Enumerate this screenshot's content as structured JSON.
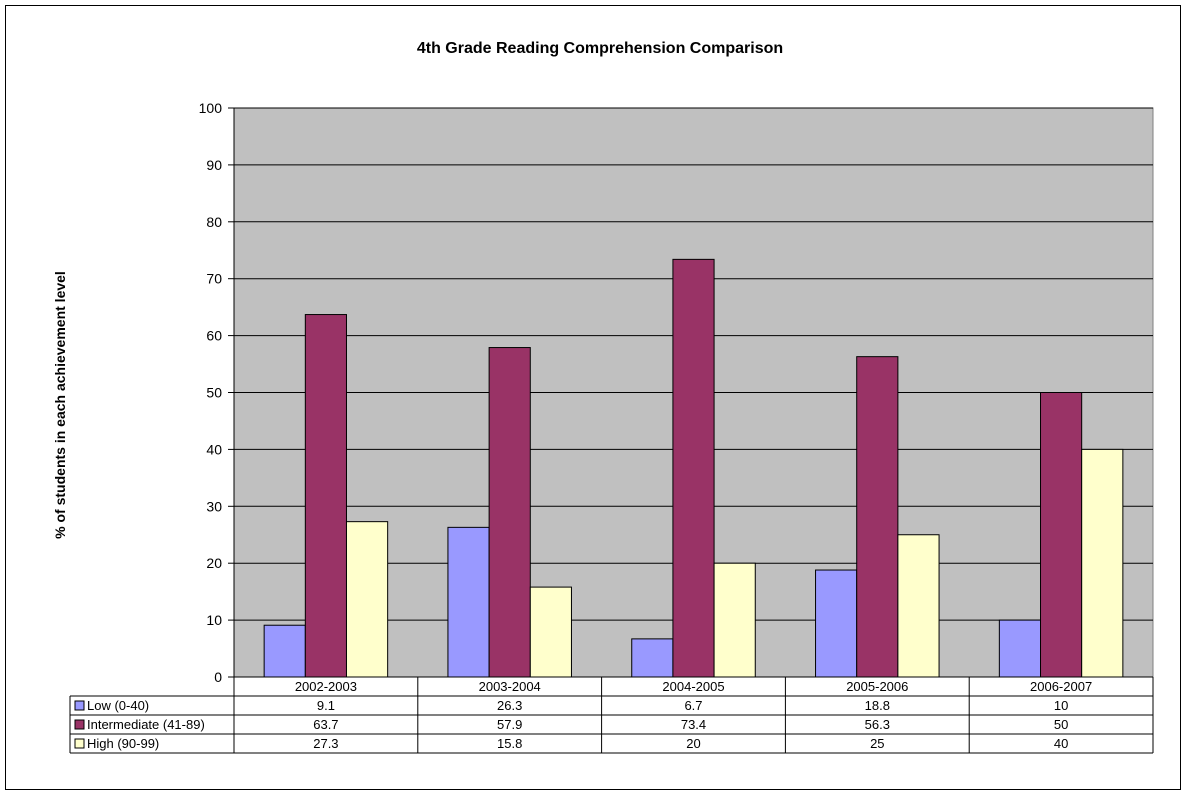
{
  "chart_data": {
    "type": "bar",
    "title": "4th Grade Reading Comprehension Comparison",
    "xlabel": "",
    "ylabel": "% of students in each achievement level",
    "ylim": [
      0,
      100
    ],
    "yticks": [
      0,
      10,
      20,
      30,
      40,
      50,
      60,
      70,
      80,
      90,
      100
    ],
    "grid": true,
    "categories": [
      "2002-2003",
      "2003-2004",
      "2004-2005",
      "2005-2006",
      "2006-2007"
    ],
    "series": [
      {
        "name": "Low (0-40)",
        "color": "#9999FF",
        "values": [
          9.1,
          26.3,
          6.7,
          18.8,
          10
        ],
        "labels": [
          "9.1",
          "26.3",
          "6.7",
          "18.8",
          "10"
        ]
      },
      {
        "name": "Intermediate (41-89)",
        "color": "#993366",
        "values": [
          63.7,
          57.9,
          73.4,
          56.3,
          50
        ],
        "labels": [
          "63.7",
          "57.9",
          "73.4",
          "56.3",
          "50"
        ]
      },
      {
        "name": "High (90-99)",
        "color": "#FFFFCC",
        "values": [
          27.3,
          15.8,
          20,
          25,
          40
        ],
        "labels": [
          "27.3",
          "15.8",
          "20",
          "25",
          "40"
        ]
      }
    ],
    "plot_background": "#C0C0C0",
    "legend_placement": "data-table"
  }
}
